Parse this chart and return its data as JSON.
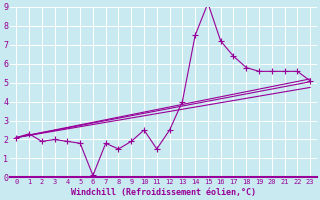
{
  "xlabel": "Windchill (Refroidissement éolien,°C)",
  "bg_color": "#c8eaf0",
  "line_color": "#990099",
  "grid_color": "#ffffff",
  "spine_color": "#990099",
  "xlim": [
    -0.5,
    23.5
  ],
  "ylim": [
    0,
    9
  ],
  "xticks": [
    0,
    1,
    2,
    3,
    4,
    5,
    6,
    7,
    8,
    9,
    10,
    11,
    12,
    13,
    14,
    15,
    16,
    17,
    18,
    19,
    20,
    21,
    22,
    23
  ],
  "yticks": [
    0,
    1,
    2,
    3,
    4,
    5,
    6,
    7,
    8,
    9
  ],
  "data_x": [
    0,
    1,
    2,
    3,
    4,
    5,
    6,
    7,
    8,
    9,
    10,
    11,
    12,
    13,
    14,
    15,
    16,
    17,
    18,
    19,
    20,
    21,
    22,
    23
  ],
  "data_y": [
    2.1,
    2.3,
    1.9,
    2.0,
    1.9,
    1.8,
    0.1,
    1.8,
    1.5,
    1.9,
    2.5,
    1.5,
    2.5,
    4.0,
    7.5,
    9.2,
    7.2,
    6.4,
    5.8,
    5.6,
    5.6,
    5.6,
    5.6,
    5.1
  ],
  "trend1_x": [
    0,
    23
  ],
  "trend1_y": [
    2.1,
    5.2
  ],
  "trend2_x": [
    0,
    23
  ],
  "trend2_y": [
    2.1,
    5.05
  ],
  "trend3_x": [
    0,
    23
  ],
  "trend3_y": [
    2.1,
    4.75
  ]
}
